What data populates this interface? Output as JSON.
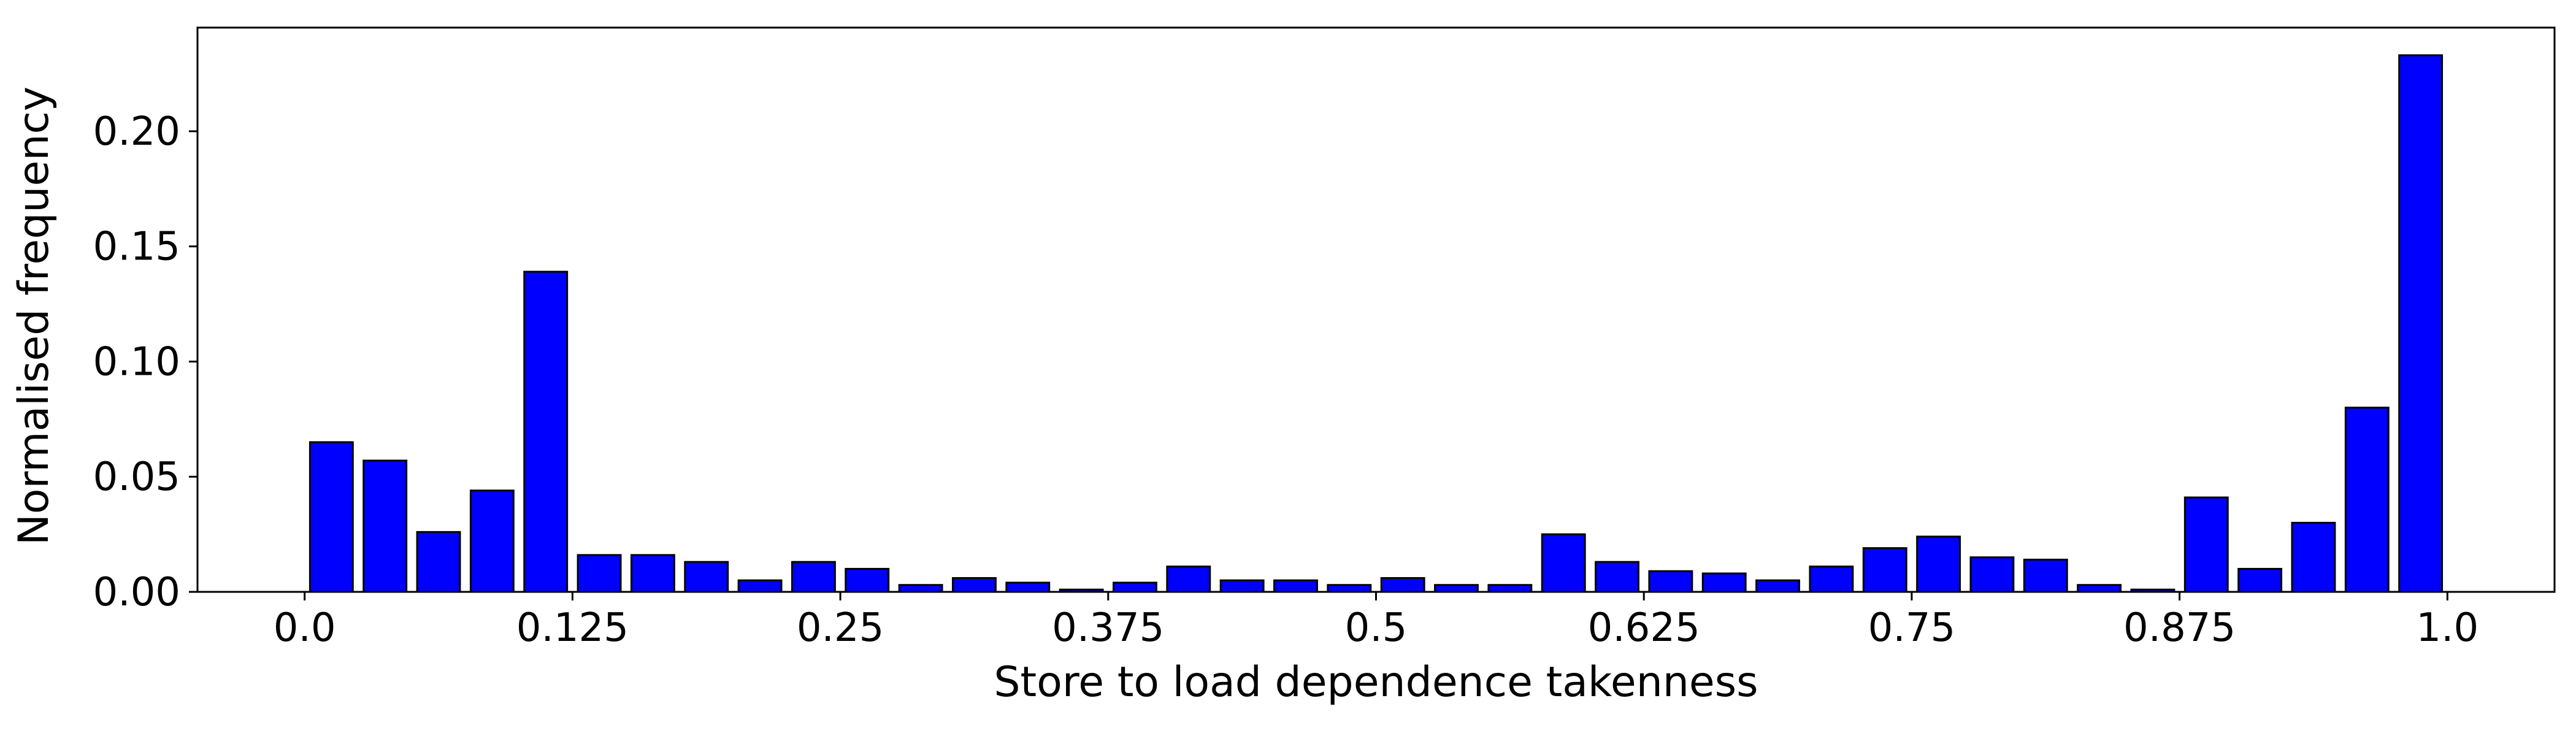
{
  "chart_data": {
    "type": "bar",
    "title": "",
    "xlabel": "Store to load dependence takenness",
    "ylabel": "Normalised frequency",
    "bar_color": "#0000ff",
    "edge_color": "#000000",
    "grid": false,
    "legend": "none",
    "xlim": [
      -0.05,
      1.05
    ],
    "ylim": [
      0.0,
      0.245
    ],
    "xticks": [
      {
        "value": 0.0,
        "label": "0.0"
      },
      {
        "value": 0.125,
        "label": "0.125"
      },
      {
        "value": 0.25,
        "label": "0.25"
      },
      {
        "value": 0.375,
        "label": "0.375"
      },
      {
        "value": 0.5,
        "label": "0.5"
      },
      {
        "value": 0.625,
        "label": "0.625"
      },
      {
        "value": 0.75,
        "label": "0.75"
      },
      {
        "value": 0.875,
        "label": "0.875"
      },
      {
        "value": 1.0,
        "label": "1.0"
      }
    ],
    "yticks": [
      {
        "value": 0.0,
        "label": "0.00"
      },
      {
        "value": 0.05,
        "label": "0.05"
      },
      {
        "value": 0.1,
        "label": "0.10"
      },
      {
        "value": 0.15,
        "label": "0.15"
      },
      {
        "value": 0.2,
        "label": "0.20"
      }
    ],
    "bin_width": 0.025,
    "x": [
      0.0125,
      0.0375,
      0.0625,
      0.0875,
      0.1125,
      0.1375,
      0.1625,
      0.1875,
      0.2125,
      0.2375,
      0.2625,
      0.2875,
      0.3125,
      0.3375,
      0.3625,
      0.3875,
      0.4125,
      0.4375,
      0.4625,
      0.4875,
      0.5125,
      0.5375,
      0.5625,
      0.5875,
      0.6125,
      0.6375,
      0.6625,
      0.6875,
      0.7125,
      0.7375,
      0.7625,
      0.7875,
      0.8125,
      0.8375,
      0.8625,
      0.8875,
      0.9125,
      0.9375,
      0.9625,
      0.9875
    ],
    "values": [
      0.065,
      0.057,
      0.026,
      0.044,
      0.139,
      0.016,
      0.016,
      0.013,
      0.005,
      0.013,
      0.01,
      0.003,
      0.006,
      0.004,
      0.001,
      0.004,
      0.011,
      0.005,
      0.005,
      0.003,
      0.006,
      0.003,
      0.003,
      0.025,
      0.013,
      0.009,
      0.008,
      0.005,
      0.011,
      0.019,
      0.024,
      0.015,
      0.014,
      0.003,
      0.001,
      0.041,
      0.01,
      0.03,
      0.08,
      0.233
    ]
  }
}
